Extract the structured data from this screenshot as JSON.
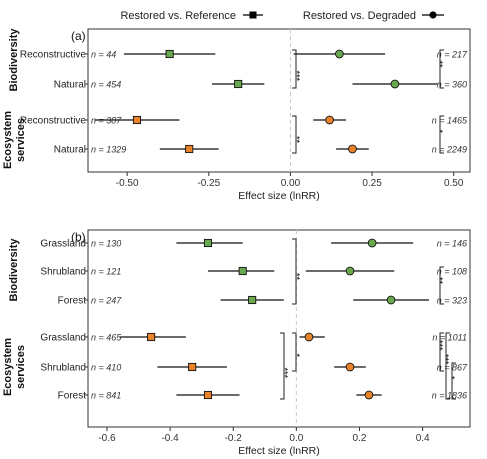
{
  "legend": {
    "items": [
      {
        "label": "Restored vs. Reference",
        "marker": "square"
      },
      {
        "label": "Restored vs. Degraded",
        "marker": "circle"
      }
    ]
  },
  "colors": {
    "biodiversity": "#6aa84f",
    "services": "#e8832a",
    "reference_line": "#c8c8c8",
    "axis": "#333333"
  },
  "chart_data": [
    {
      "type": "scatter",
      "panel_label": "(a)",
      "xlabel": "Effect size (lnRR)",
      "xlim": [
        -0.62,
        0.55
      ],
      "xticks": [
        -0.5,
        -0.25,
        0.0,
        0.25,
        0.5
      ],
      "xtick_labels": [
        "-0.50",
        "-0.25",
        "0.00",
        "0.25",
        "0.50"
      ],
      "groups": [
        {
          "name": "Biodiversity",
          "kind": "biodiversity",
          "rows": [
            "Reconstructive",
            "Natural"
          ]
        },
        {
          "name": "Ecosystem services",
          "kind": "services",
          "rows": [
            "Reconstructive",
            "Natural"
          ]
        }
      ],
      "series": [
        {
          "name": "Restored vs. Reference",
          "marker": "square",
          "points": [
            {
              "group": "Biodiversity",
              "row": "Reconstructive",
              "mean": -0.37,
              "ci": [
                -0.51,
                -0.23
              ],
              "n": "n = 44"
            },
            {
              "group": "Biodiversity",
              "row": "Natural",
              "mean": -0.16,
              "ci": [
                -0.24,
                -0.08
              ],
              "n": "n = 454"
            },
            {
              "group": "Ecosystem services",
              "row": "Reconstructive",
              "mean": -0.47,
              "ci": [
                -0.6,
                -0.34
              ],
              "n": "n = 387"
            },
            {
              "group": "Ecosystem services",
              "row": "Natural",
              "mean": -0.31,
              "ci": [
                -0.4,
                -0.22
              ],
              "n": "n = 1329"
            }
          ]
        },
        {
          "name": "Restored vs. Degraded",
          "marker": "circle",
          "points": [
            {
              "group": "Biodiversity",
              "row": "Reconstructive",
              "mean": 0.15,
              "ci": [
                0.01,
                0.29
              ],
              "n": "n = 217"
            },
            {
              "group": "Biodiversity",
              "row": "Natural",
              "mean": 0.32,
              "ci": [
                0.19,
                0.45
              ],
              "n": "n = 360"
            },
            {
              "group": "Ecosystem services",
              "row": "Reconstructive",
              "mean": 0.12,
              "ci": [
                0.07,
                0.17
              ],
              "n": "n = 1465"
            },
            {
              "group": "Ecosystem services",
              "row": "Natural",
              "mean": 0.19,
              "ci": [
                0.14,
                0.24
              ],
              "n": "n = 2249"
            }
          ]
        }
      ],
      "significance": [
        {
          "side": "left",
          "group": "Biodiversity",
          "between": [
            "Reconstructive",
            "Natural"
          ],
          "label": "***"
        },
        {
          "side": "right",
          "group": "Biodiversity",
          "between": [
            "Reconstructive",
            "Natural"
          ],
          "label": "**"
        },
        {
          "side": "left",
          "group": "Ecosystem services",
          "between": [
            "Reconstructive",
            "Natural"
          ],
          "label": "**"
        },
        {
          "side": "right",
          "group": "Ecosystem services",
          "between": [
            "Reconstructive",
            "Natural"
          ],
          "label": "*"
        }
      ]
    },
    {
      "type": "scatter",
      "panel_label": "(b)",
      "xlabel": "Effect size (lnRR)",
      "xlim": [
        -0.66,
        0.55
      ],
      "xticks": [
        -0.6,
        -0.4,
        -0.2,
        0.0,
        0.2,
        0.4
      ],
      "xtick_labels": [
        "-0.6",
        "-0.4",
        "-0.2",
        "0.0",
        "0.2",
        "0.4"
      ],
      "groups": [
        {
          "name": "Biodiversity",
          "kind": "biodiversity",
          "rows": [
            "Grassland",
            "Shrubland",
            "Forest"
          ]
        },
        {
          "name": "Ecosystem services",
          "kind": "services",
          "rows": [
            "Grassland",
            "Shrubland",
            "Forest"
          ]
        }
      ],
      "series": [
        {
          "name": "Restored vs. Reference",
          "marker": "square",
          "points": [
            {
              "group": "Biodiversity",
              "row": "Grassland",
              "mean": -0.28,
              "ci": [
                -0.38,
                -0.17
              ],
              "n": "n = 130"
            },
            {
              "group": "Biodiversity",
              "row": "Shrubland",
              "mean": -0.17,
              "ci": [
                -0.28,
                -0.07
              ],
              "n": "n = 121"
            },
            {
              "group": "Biodiversity",
              "row": "Forest",
              "mean": -0.14,
              "ci": [
                -0.24,
                -0.04
              ],
              "n": "n = 247"
            },
            {
              "group": "Ecosystem services",
              "row": "Grassland",
              "mean": -0.46,
              "ci": [
                -0.56,
                -0.35
              ],
              "n": "n = 465"
            },
            {
              "group": "Ecosystem services",
              "row": "Shrubland",
              "mean": -0.33,
              "ci": [
                -0.44,
                -0.22
              ],
              "n": "n = 410"
            },
            {
              "group": "Ecosystem services",
              "row": "Forest",
              "mean": -0.28,
              "ci": [
                -0.38,
                -0.18
              ],
              "n": "n = 841"
            }
          ]
        },
        {
          "name": "Restored vs. Degraded",
          "marker": "circle",
          "points": [
            {
              "group": "Biodiversity",
              "row": "Grassland",
              "mean": 0.24,
              "ci": [
                0.11,
                0.37
              ],
              "n": "n = 146"
            },
            {
              "group": "Biodiversity",
              "row": "Shrubland",
              "mean": 0.17,
              "ci": [
                0.03,
                0.31
              ],
              "n": "n = 108"
            },
            {
              "group": "Biodiversity",
              "row": "Forest",
              "mean": 0.3,
              "ci": [
                0.18,
                0.42
              ],
              "n": "n = 323"
            },
            {
              "group": "Ecosystem services",
              "row": "Grassland",
              "mean": 0.04,
              "ci": [
                0.01,
                0.09
              ],
              "n": "n = 1011"
            },
            {
              "group": "Ecosystem services",
              "row": "Shrubland",
              "mean": 0.17,
              "ci": [
                0.12,
                0.22
              ],
              "n": "n = 867"
            },
            {
              "group": "Ecosystem services",
              "row": "Forest",
              "mean": 0.23,
              "ci": [
                0.19,
                0.27
              ],
              "n": "n = 1836"
            }
          ]
        }
      ],
      "significance": [
        {
          "side": "left",
          "group": "Biodiversity",
          "between": [
            "Grassland",
            "Forest"
          ],
          "label": "**"
        },
        {
          "side": "right",
          "group": "Biodiversity",
          "between": [
            "Shrubland",
            "Forest"
          ],
          "label": "**"
        },
        {
          "side": "left",
          "group": "Ecosystem services",
          "between": [
            "Grassland",
            "Shrubland"
          ],
          "label": "*"
        },
        {
          "side": "left",
          "group": "Ecosystem services",
          "between": [
            "Grassland",
            "Forest"
          ],
          "label": "***"
        },
        {
          "side": "right",
          "group": "Ecosystem services",
          "between": [
            "Grassland",
            "Shrubland"
          ],
          "label": "***"
        },
        {
          "side": "right",
          "group": "Ecosystem services",
          "between": [
            "Grassland",
            "Forest"
          ],
          "label": "***"
        },
        {
          "side": "right",
          "group": "Ecosystem services",
          "between": [
            "Shrubland",
            "Forest"
          ],
          "label": "*"
        }
      ]
    }
  ]
}
